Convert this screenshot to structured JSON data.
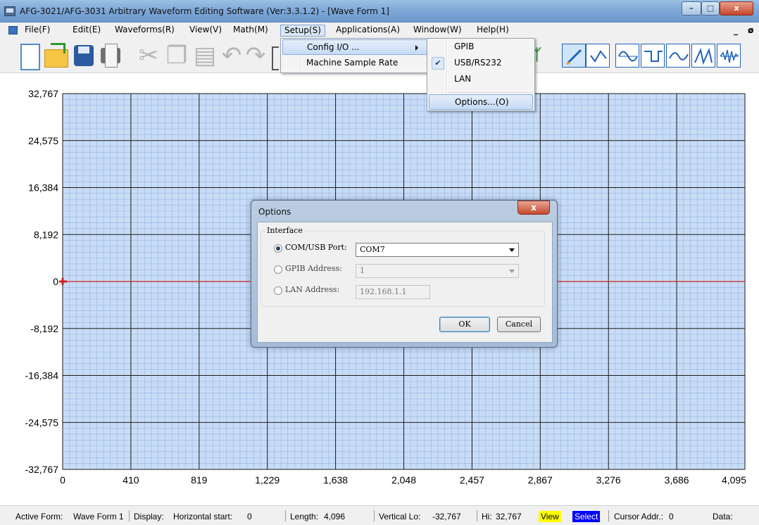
{
  "window": {
    "title": "AFG-3021/AFG-3031 Arbitrary Waveform Editing Software (Ver:3.3.1.2) - [Wave Form 1]",
    "controls": {
      "minimize": "–",
      "maximize": "□",
      "close": "x"
    }
  },
  "menubar": {
    "items": [
      "File(F)",
      "Edit(E)",
      "Waveforms(R)",
      "View(V)",
      "Math(M)",
      "Setup(S)",
      "Applications(A)",
      "Window(W)",
      "Help(H)"
    ],
    "active": "Setup(S)",
    "mdi_controls": "_ ø x"
  },
  "toolbar": {
    "icons": [
      "new-file-icon",
      "open-folder-icon",
      "save-icon",
      "print-icon",
      "cut-icon",
      "copy-icon",
      "paste-icon",
      "undo-icon",
      "redo-icon"
    ],
    "wave_buttons": [
      "freehand-draw-icon",
      "point-draw-icon",
      "sine-wave-icon",
      "square-wave-icon",
      "sine-wave-alt-icon",
      "ramp-wave-icon",
      "noise-wave-icon"
    ]
  },
  "setup_menu": {
    "items": [
      "Config I/O ...",
      "Machine Sample Rate"
    ],
    "highlighted": "Config I/O ..."
  },
  "config_io_submenu": {
    "items": [
      "GPIB",
      "USB/RS232",
      "LAN",
      "Options...(O)"
    ],
    "checked": "USB/RS232",
    "highlighted": "Options...(O)"
  },
  "chart_data": {
    "type": "line",
    "y_ticks": [
      "32,767",
      "24,575",
      "16,384",
      "8,192",
      "0",
      "-8,192",
      "-16,384",
      "-24,575",
      "-32,767"
    ],
    "x_ticks": [
      "0",
      "410",
      "819",
      "1,229",
      "1,638",
      "2,048",
      "2,457",
      "2,867",
      "3,276",
      "3,686",
      "4,095"
    ],
    "xlim": [
      0,
      4095
    ],
    "ylim": [
      -32767,
      32767
    ],
    "series": [
      {
        "x": [
          0,
          4095
        ],
        "values": [
          0,
          0
        ]
      }
    ],
    "grid": true,
    "colors": {
      "background": "#c8dcf6",
      "minor_grid": "#6b8fd0",
      "major_grid": "#1a1a1a",
      "line": "#cc2222"
    }
  },
  "dialog": {
    "title": "Options",
    "close": "x",
    "group_label": "Interface",
    "options": [
      {
        "label": "COM/USB Port:",
        "value": "COM7",
        "selected": true
      },
      {
        "label": "GPIB Address:",
        "value": "1",
        "selected": false
      },
      {
        "label": "LAN Address:",
        "value": "192.168.1.1",
        "selected": false
      }
    ],
    "ok_label": "OK",
    "cancel_label": "Cancel"
  },
  "statusbar": {
    "active_form_label": "Active Form:",
    "active_form_value": "Wave Form 1",
    "display_label": "Display:",
    "horizontal_start_label": "Horizontal start:",
    "horizontal_start_value": "0",
    "length_label": "Length:",
    "length_value": "4,096",
    "vertical_lo_label": "Vertical Lo:",
    "vertical_lo_value": "-32,767",
    "hi_label": "Hi:",
    "hi_value": "32,767",
    "view_label": "View",
    "select_label": "Select",
    "cursor_label": "Cursor Addr.:",
    "cursor_value": "0",
    "data_label": "Data:"
  }
}
